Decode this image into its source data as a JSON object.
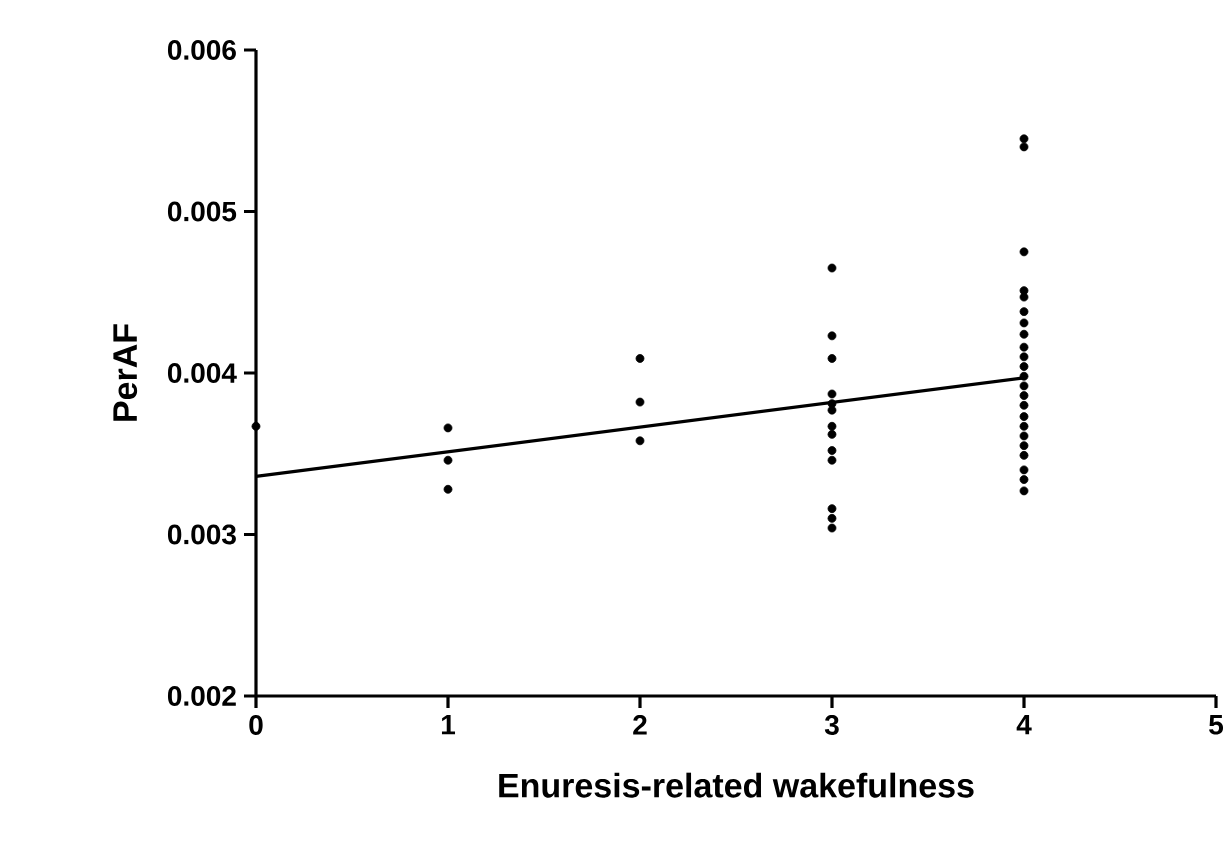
{
  "chart_data": {
    "type": "scatter",
    "xlabel": "Enuresis-related wakefulness",
    "ylabel": "PerAF",
    "xlim": [
      0,
      5
    ],
    "ylim": [
      0.002,
      0.006
    ],
    "xticks": [
      0,
      1,
      2,
      3,
      4,
      5
    ],
    "yticks": [
      0.002,
      0.003,
      0.004,
      0.005,
      0.006
    ],
    "grid": false,
    "series": [
      {
        "marker": "circle",
        "color": "#000000",
        "x": [
          0,
          1,
          1,
          1,
          2,
          2,
          2,
          3,
          3,
          3,
          3,
          3,
          3,
          3,
          3,
          3,
          3,
          3,
          3,
          3,
          4,
          4,
          4,
          4,
          4,
          4,
          4,
          4,
          4,
          4,
          4,
          4,
          4,
          4,
          4,
          4,
          4,
          4,
          4,
          4,
          4,
          4,
          4
        ],
        "values": [
          0.00367,
          0.00366,
          0.00346,
          0.00328,
          0.00409,
          0.00382,
          0.00358,
          0.00465,
          0.00423,
          0.00409,
          0.00387,
          0.00381,
          0.00377,
          0.00367,
          0.00362,
          0.00352,
          0.00346,
          0.00316,
          0.0031,
          0.00304,
          0.00545,
          0.0054,
          0.00475,
          0.00451,
          0.00447,
          0.00438,
          0.00431,
          0.00424,
          0.00416,
          0.0041,
          0.00404,
          0.00398,
          0.00392,
          0.00386,
          0.0038,
          0.00373,
          0.00367,
          0.00361,
          0.00355,
          0.00349,
          0.0034,
          0.00334,
          0.00327
        ]
      },
      {
        "type": "line",
        "color": "#000000",
        "x": [
          0,
          4
        ],
        "values": [
          0.00336,
          0.00397
        ]
      }
    ]
  }
}
